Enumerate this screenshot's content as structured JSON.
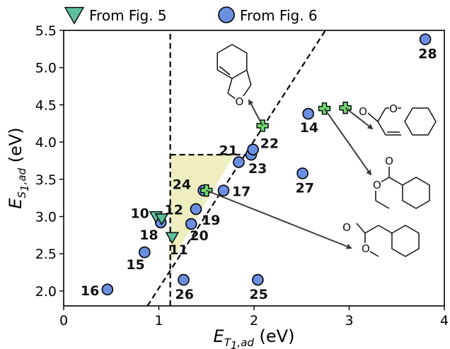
{
  "chart_data": {
    "type": "scatter",
    "xlabel": {
      "main": "E",
      "sub": "T",
      "subsub": "1",
      "tail": ",ad",
      "unit": "(eV)"
    },
    "ylabel": {
      "main": "E",
      "sub": "S",
      "subsub": "1",
      "tail": ",ad",
      "unit": "(eV)"
    },
    "xlim": [
      0,
      4
    ],
    "ylim": [
      1.8,
      5.5
    ],
    "xticks": [
      "0",
      "1",
      "2",
      "3",
      "4"
    ],
    "yticks": [
      "2.0",
      "2.5",
      "3.0",
      "3.5",
      "4.0",
      "4.5",
      "5.0",
      "5.5"
    ],
    "grid": false,
    "legend_placement": "top",
    "series": [
      {
        "name": "From Fig. 5",
        "marker": "triangle-down",
        "color": "#5dbf9b",
        "points": [
          {
            "label": "10",
            "x": 0.97,
            "y": 3.0
          },
          {
            "label": "12",
            "x": 1.03,
            "y": 2.97
          },
          {
            "label": "11",
            "x": 1.14,
            "y": 2.72
          }
        ]
      },
      {
        "name": "From Fig. 6",
        "marker": "circle",
        "color": "#6b8fe0",
        "points": [
          {
            "label": "16",
            "x": 0.46,
            "y": 2.02
          },
          {
            "label": "15",
            "x": 0.85,
            "y": 2.52
          },
          {
            "label": "18",
            "x": 1.02,
            "y": 2.92
          },
          {
            "label": "20",
            "x": 1.34,
            "y": 2.9
          },
          {
            "label": "19",
            "x": 1.39,
            "y": 3.1
          },
          {
            "label": "24",
            "x": 1.47,
            "y": 3.35
          },
          {
            "label": "17",
            "x": 1.68,
            "y": 3.35
          },
          {
            "label": "21",
            "x": 1.84,
            "y": 3.73
          },
          {
            "label": "23",
            "x": 1.97,
            "y": 3.83
          },
          {
            "label": "22",
            "x": 1.99,
            "y": 3.9
          },
          {
            "label": "14",
            "x": 2.57,
            "y": 4.38
          },
          {
            "label": "27",
            "x": 2.51,
            "y": 3.58
          },
          {
            "label": "26",
            "x": 1.26,
            "y": 2.15
          },
          {
            "label": "25",
            "x": 2.04,
            "y": 2.15
          },
          {
            "label": "28",
            "x": 3.8,
            "y": 5.38
          }
        ]
      },
      {
        "marker": "plus",
        "color": "#6fd66f",
        "points": [
          {
            "x": 2.09,
            "y": 4.22
          },
          {
            "x": 2.74,
            "y": 4.45
          },
          {
            "x": 2.96,
            "y": 4.46
          },
          {
            "x": 1.5,
            "y": 3.35
          }
        ]
      }
    ],
    "reference_lines": [
      {
        "style": "dashed",
        "kind": "vertical",
        "x": 1.12
      },
      {
        "style": "dashed",
        "kind": "horizontal",
        "y": 3.83,
        "x_range": [
          1.12,
          1.99
        ]
      },
      {
        "style": "dashed",
        "kind": "diagonal",
        "from": [
          0.88,
          1.8
        ],
        "to": [
          2.75,
          5.5
        ]
      }
    ],
    "shaded_region": {
      "color": "#eeeec0",
      "vertices": [
        [
          1.12,
          2.37
        ],
        [
          1.12,
          3.83
        ],
        [
          1.79,
          3.83
        ]
      ]
    },
    "annotations": {
      "atom_label": "O"
    }
  }
}
